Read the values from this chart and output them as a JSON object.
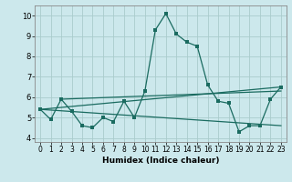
{
  "xlabel": "Humidex (Indice chaleur)",
  "xlim": [
    -0.5,
    23.5
  ],
  "ylim": [
    3.8,
    10.5
  ],
  "yticks": [
    4,
    5,
    6,
    7,
    8,
    9,
    10
  ],
  "xticks": [
    0,
    1,
    2,
    3,
    4,
    5,
    6,
    7,
    8,
    9,
    10,
    11,
    12,
    13,
    14,
    15,
    16,
    17,
    18,
    19,
    20,
    21,
    22,
    23
  ],
  "background_color": "#cce8ec",
  "grid_color": "#aacccc",
  "line_color": "#1a6b60",
  "line1_x": [
    0,
    1,
    2,
    3,
    4,
    5,
    6,
    7,
    8,
    9,
    10,
    11,
    12,
    13,
    14,
    15,
    16,
    17,
    18,
    19,
    20,
    21,
    22,
    23
  ],
  "line1_y": [
    5.4,
    4.9,
    5.9,
    5.3,
    4.6,
    4.5,
    5.0,
    4.8,
    5.8,
    5.0,
    6.3,
    9.3,
    10.1,
    9.1,
    8.7,
    8.5,
    6.6,
    5.8,
    5.7,
    4.3,
    4.6,
    4.6,
    5.9,
    6.5
  ],
  "line2_x": [
    0,
    23
  ],
  "line2_y": [
    5.4,
    6.5
  ],
  "line3_x": [
    0,
    23
  ],
  "line3_y": [
    5.4,
    4.6
  ],
  "line4_x": [
    2,
    23
  ],
  "line4_y": [
    5.9,
    6.3
  ]
}
